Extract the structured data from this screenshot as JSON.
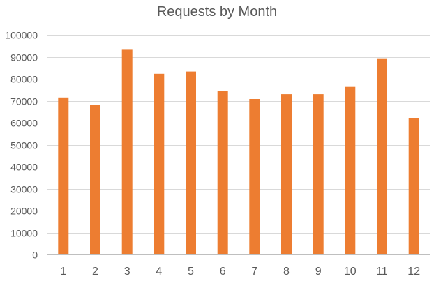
{
  "chart_data": {
    "type": "bar",
    "title": "Requests by Month",
    "xlabel": "",
    "ylabel": "",
    "categories": [
      "1",
      "2",
      "3",
      "4",
      "5",
      "6",
      "7",
      "8",
      "9",
      "10",
      "11",
      "12"
    ],
    "values": [
      71500,
      68000,
      93200,
      82300,
      83300,
      74500,
      70800,
      73000,
      73000,
      76300,
      89300,
      62000
    ],
    "ylim": [
      0,
      100000
    ],
    "yticks": [
      0,
      10000,
      20000,
      30000,
      40000,
      50000,
      60000,
      70000,
      80000,
      90000,
      100000
    ],
    "grid": true,
    "legend": "none",
    "bar_color": "#ED7D31",
    "grid_color": "#D9D9D9",
    "text_color": "#595959"
  }
}
